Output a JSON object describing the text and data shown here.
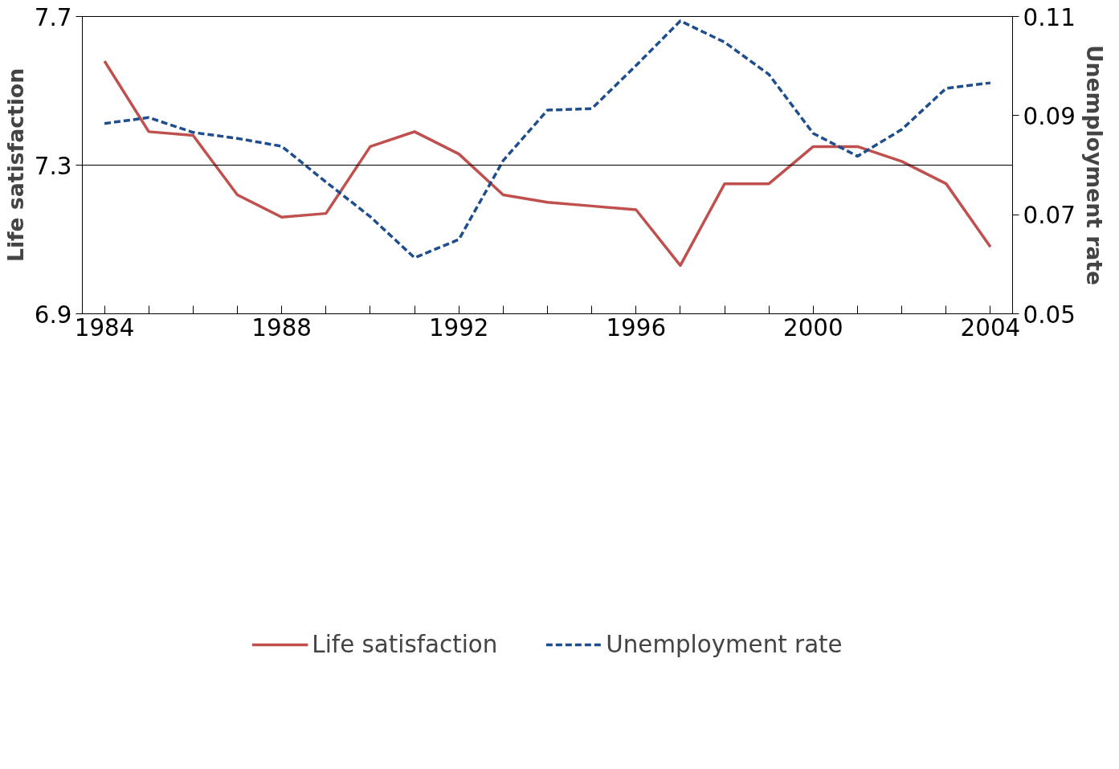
{
  "chart_data": {
    "type": "line",
    "xlabel": null,
    "ylabel": "Life satisfaction",
    "y2label": "Unemployment rate",
    "x": [
      1984,
      1985,
      1986,
      1987,
      1988,
      1989,
      1990,
      1991,
      1992,
      1993,
      1994,
      1995,
      1996,
      1997,
      1998,
      1999,
      2000,
      2001,
      2002,
      2003,
      2004
    ],
    "series": [
      {
        "name": "Life satisfaction",
        "color": "#c0504d",
        "line_style": "solid",
        "values": [
          7.58,
          7.39,
          7.38,
          7.22,
          7.16,
          7.17,
          7.35,
          7.39,
          7.33,
          7.22,
          7.2,
          7.19,
          7.18,
          7.03,
          7.25,
          7.25,
          7.35,
          7.35,
          7.31,
          7.25,
          7.08
        ]
      },
      {
        "name": "Unemployment rate",
        "color": "#1f4e8c",
        "line_style": "dashed",
        "axis": "y2",
        "values": [
          0.0884,
          0.0896,
          0.0866,
          0.0854,
          0.0838,
          0.0766,
          0.0696,
          0.0613,
          0.065,
          0.0809,
          0.0911,
          0.0914,
          0.1001,
          0.1091,
          0.1048,
          0.0983,
          0.0864,
          0.0818,
          0.0872,
          0.0955,
          0.0966
        ]
      }
    ],
    "xlim": [
      1983.5,
      2004.5
    ],
    "xticks": [
      1984,
      {
        "value": 1985,
        "label": null
      },
      {
        "value": 1986,
        "label": null
      },
      {
        "value": 1987,
        "label": null
      },
      1988,
      {
        "value": 1989,
        "label": null
      },
      {
        "value": 1990,
        "label": null
      },
      {
        "value": 1991,
        "label": null
      },
      1992,
      {
        "value": 1993,
        "label": null
      },
      {
        "value": 1994,
        "label": null
      },
      {
        "value": 1995,
        "label": null
      },
      1996,
      {
        "value": 1997,
        "label": null
      },
      {
        "value": 1998,
        "label": null
      },
      {
        "value": 1999,
        "label": null
      },
      2000,
      {
        "value": 2001,
        "label": null
      },
      {
        "value": 2002,
        "label": null
      },
      {
        "value": 2003,
        "label": null
      },
      2004
    ],
    "ylim": [
      6.9,
      7.7
    ],
    "yticks": [
      6.9,
      7.3,
      7.7
    ],
    "y2lim": [
      0.05,
      0.11
    ],
    "y2ticks": [
      0.05,
      0.07,
      0.09,
      0.11
    ],
    "ref_lines": [
      {
        "axis": "y",
        "value": 7.3,
        "label": null,
        "color": "#000000"
      }
    ],
    "grid": false,
    "legend": "bottom",
    "marker": "none"
  }
}
